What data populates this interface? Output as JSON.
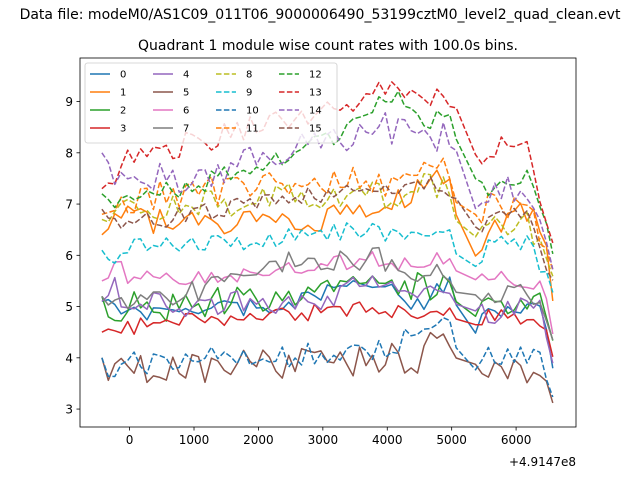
{
  "chart_data": {
    "type": "line",
    "suptitle": "Data file: modeM0/AS1C09_011T06_9000006490_53199cztM0_level2_quad_clean.evt",
    "title": "Quadrant 1 module wise count rates with 100.0s bins.",
    "xlabel": "",
    "ylabel": "",
    "x_offset_label": "+4.9147e8",
    "xlim": [
      -770,
      6930
    ],
    "ylim": [
      2.65,
      9.85
    ],
    "xticks": [
      0,
      1000,
      2000,
      3000,
      4000,
      5000,
      6000
    ],
    "yticks": [
      3,
      4,
      5,
      6,
      7,
      8,
      9
    ],
    "xticklabels": [
      "0",
      "1000",
      "2000",
      "3000",
      "4000",
      "5000",
      "6000"
    ],
    "yticklabels": [
      "3",
      "4",
      "5",
      "6",
      "7",
      "8",
      "9"
    ],
    "x_start": -430,
    "x_step": 100,
    "n_points": 71,
    "gap_range": [
      5100,
      5300
    ],
    "legend_position": "upper-left",
    "series": [
      {
        "name": "0",
        "color": "#1f77b4",
        "dash": "solid",
        "anchors": [
          [
            -430,
            5.1
          ],
          [
            -300,
            5.3
          ],
          [
            -200,
            5.0
          ],
          [
            0,
            4.9
          ],
          [
            1000,
            4.9
          ],
          [
            2000,
            5.0
          ],
          [
            3000,
            5.2
          ],
          [
            3500,
            5.6
          ],
          [
            4000,
            5.4
          ],
          [
            4500,
            5.0
          ],
          [
            5000,
            5.6
          ],
          [
            5200,
            4.2
          ],
          [
            5600,
            5.0
          ],
          [
            6400,
            4.9
          ],
          [
            6600,
            3.6
          ]
        ]
      },
      {
        "name": "1",
        "color": "#ff7f0e",
        "dash": "solid",
        "anchors": [
          [
            -430,
            6.4
          ],
          [
            -200,
            7.0
          ],
          [
            0,
            6.7
          ],
          [
            1000,
            6.6
          ],
          [
            2000,
            6.7
          ],
          [
            3000,
            6.7
          ],
          [
            4000,
            7.0
          ],
          [
            4700,
            7.4
          ],
          [
            5000,
            7.5
          ],
          [
            5200,
            5.8
          ],
          [
            5600,
            6.4
          ],
          [
            6200,
            6.9
          ],
          [
            6500,
            6.3
          ],
          [
            6600,
            4.6
          ]
        ]
      },
      {
        "name": "2",
        "color": "#2ca02c",
        "dash": "solid",
        "anchors": [
          [
            -430,
            5.2
          ],
          [
            -300,
            4.9
          ],
          [
            0,
            5.0
          ],
          [
            1000,
            5.0
          ],
          [
            2000,
            5.2
          ],
          [
            3000,
            5.3
          ],
          [
            3800,
            5.7
          ],
          [
            4200,
            5.3
          ],
          [
            5000,
            5.5
          ],
          [
            5200,
            4.8
          ],
          [
            5600,
            5.0
          ],
          [
            6400,
            5.1
          ],
          [
            6600,
            4.2
          ]
        ]
      },
      {
        "name": "3",
        "color": "#d62728",
        "dash": "solid",
        "anchors": [
          [
            -430,
            4.5
          ],
          [
            -300,
            4.7
          ],
          [
            0,
            4.6
          ],
          [
            1000,
            4.7
          ],
          [
            2000,
            4.8
          ],
          [
            3000,
            4.9
          ],
          [
            3800,
            5.0
          ],
          [
            4200,
            4.9
          ],
          [
            5000,
            5.0
          ],
          [
            5200,
            4.6
          ],
          [
            5600,
            4.8
          ],
          [
            6400,
            4.7
          ],
          [
            6600,
            3.9
          ]
        ]
      },
      {
        "name": "4",
        "color": "#9467bd",
        "dash": "solid",
        "anchors": [
          [
            -430,
            5.1
          ],
          [
            -300,
            5.4
          ],
          [
            0,
            5.1
          ],
          [
            1000,
            5.0
          ],
          [
            2000,
            5.1
          ],
          [
            3000,
            5.1
          ],
          [
            3800,
            5.6
          ],
          [
            4200,
            5.4
          ],
          [
            5000,
            5.3
          ],
          [
            5200,
            5.0
          ],
          [
            5600,
            4.9
          ],
          [
            6400,
            5.0
          ],
          [
            6600,
            3.7
          ]
        ]
      },
      {
        "name": "5",
        "color": "#8c564b",
        "dash": "solid",
        "anchors": [
          [
            -430,
            4.0
          ],
          [
            -300,
            3.6
          ],
          [
            0,
            3.8
          ],
          [
            1000,
            3.8
          ],
          [
            2000,
            3.9
          ],
          [
            3000,
            3.9
          ],
          [
            4000,
            4.0
          ],
          [
            4500,
            3.9
          ],
          [
            4700,
            4.3
          ],
          [
            5000,
            4.3
          ],
          [
            5200,
            4.0
          ],
          [
            5600,
            3.8
          ],
          [
            6400,
            3.8
          ],
          [
            6600,
            3.0
          ]
        ]
      },
      {
        "name": "6",
        "color": "#e377c2",
        "dash": "solid",
        "anchors": [
          [
            -430,
            5.5
          ],
          [
            -200,
            5.8
          ],
          [
            0,
            5.6
          ],
          [
            1000,
            5.5
          ],
          [
            2000,
            5.7
          ],
          [
            3000,
            5.8
          ],
          [
            3800,
            6.0
          ],
          [
            4200,
            5.8
          ],
          [
            5000,
            6.0
          ],
          [
            5200,
            5.5
          ],
          [
            5600,
            5.6
          ],
          [
            6400,
            5.4
          ],
          [
            6600,
            4.3
          ]
        ]
      },
      {
        "name": "7",
        "color": "#7f7f7f",
        "dash": "solid",
        "anchors": [
          [
            -430,
            5.2
          ],
          [
            -200,
            5.0
          ],
          [
            0,
            5.0
          ],
          [
            1000,
            5.3
          ],
          [
            2000,
            5.7
          ],
          [
            2500,
            5.9
          ],
          [
            3000,
            5.8
          ],
          [
            3800,
            6.0
          ],
          [
            4200,
            5.6
          ],
          [
            5000,
            5.6
          ],
          [
            5200,
            5.2
          ],
          [
            5600,
            5.3
          ],
          [
            6400,
            5.2
          ],
          [
            6600,
            4.2
          ]
        ]
      },
      {
        "name": "8",
        "color": "#bcbd22",
        "dash": "dashed",
        "anchors": [
          [
            -430,
            6.7
          ],
          [
            -200,
            6.8
          ],
          [
            0,
            6.9
          ],
          [
            1000,
            7.0
          ],
          [
            2000,
            7.1
          ],
          [
            3000,
            7.2
          ],
          [
            3500,
            7.3
          ],
          [
            4000,
            7.1
          ],
          [
            4600,
            7.4
          ],
          [
            5000,
            7.3
          ],
          [
            5200,
            6.2
          ],
          [
            5600,
            6.6
          ],
          [
            6200,
            6.7
          ],
          [
            6600,
            5.5
          ]
        ]
      },
      {
        "name": "9",
        "color": "#17becf",
        "dash": "dashed",
        "anchors": [
          [
            -430,
            6.1
          ],
          [
            -200,
            5.8
          ],
          [
            0,
            6.2
          ],
          [
            1000,
            6.2
          ],
          [
            2000,
            6.3
          ],
          [
            3000,
            6.4
          ],
          [
            3500,
            6.5
          ],
          [
            4000,
            6.4
          ],
          [
            4600,
            6.5
          ],
          [
            5000,
            6.6
          ],
          [
            5200,
            5.4
          ],
          [
            5600,
            6.3
          ],
          [
            6200,
            6.2
          ],
          [
            6600,
            5.2
          ]
        ]
      },
      {
        "name": "10",
        "color": "#1f77b4",
        "dash": "dashed",
        "anchors": [
          [
            -430,
            4.0
          ],
          [
            -300,
            3.6
          ],
          [
            0,
            3.9
          ],
          [
            1000,
            4.0
          ],
          [
            2000,
            4.0
          ],
          [
            3000,
            4.1
          ],
          [
            4000,
            4.2
          ],
          [
            4500,
            4.5
          ],
          [
            4800,
            4.7
          ],
          [
            5000,
            4.9
          ],
          [
            5200,
            3.5
          ],
          [
            5600,
            4.1
          ],
          [
            6400,
            4.0
          ],
          [
            6600,
            3.1
          ]
        ]
      },
      {
        "name": "11",
        "color": "#ff7f0e",
        "dash": "dashed",
        "anchors": [
          [
            -430,
            6.8
          ],
          [
            -200,
            7.0
          ],
          [
            0,
            7.1
          ],
          [
            1000,
            7.2
          ],
          [
            2000,
            7.4
          ],
          [
            3000,
            7.5
          ],
          [
            3500,
            7.5
          ],
          [
            4000,
            7.4
          ],
          [
            4600,
            7.6
          ],
          [
            5000,
            7.7
          ],
          [
            5200,
            6.6
          ],
          [
            5600,
            7.0
          ],
          [
            6200,
            7.0
          ],
          [
            6600,
            5.6
          ]
        ]
      },
      {
        "name": "12",
        "color": "#2ca02c",
        "dash": "dashed",
        "anchors": [
          [
            -430,
            7.2
          ],
          [
            -200,
            7.0
          ],
          [
            0,
            7.2
          ],
          [
            1000,
            7.3
          ],
          [
            1500,
            7.6
          ],
          [
            2000,
            7.8
          ],
          [
            3000,
            8.2
          ],
          [
            3500,
            8.5
          ],
          [
            4000,
            9.2
          ],
          [
            4600,
            8.6
          ],
          [
            5000,
            8.9
          ],
          [
            5200,
            7.6
          ],
          [
            5600,
            7.3
          ],
          [
            6200,
            7.6
          ],
          [
            6600,
            5.9
          ]
        ]
      },
      {
        "name": "13",
        "color": "#d62728",
        "dash": "dashed",
        "anchors": [
          [
            -430,
            7.3
          ],
          [
            -200,
            7.6
          ],
          [
            0,
            7.9
          ],
          [
            1000,
            8.2
          ],
          [
            2000,
            8.5
          ],
          [
            3000,
            8.8
          ],
          [
            3500,
            9.0
          ],
          [
            4000,
            9.4
          ],
          [
            4600,
            9.0
          ],
          [
            5000,
            9.1
          ],
          [
            5200,
            7.8
          ],
          [
            5600,
            8.1
          ],
          [
            6200,
            8.0
          ],
          [
            6600,
            6.1
          ]
        ]
      },
      {
        "name": "14",
        "color": "#9467bd",
        "dash": "dashed",
        "anchors": [
          [
            -430,
            8.0
          ],
          [
            -200,
            7.6
          ],
          [
            0,
            7.6
          ],
          [
            1000,
            7.5
          ],
          [
            2000,
            7.9
          ],
          [
            3000,
            8.2
          ],
          [
            3500,
            8.3
          ],
          [
            4000,
            8.5
          ],
          [
            4600,
            8.2
          ],
          [
            5000,
            8.4
          ],
          [
            5200,
            6.6
          ],
          [
            5600,
            7.2
          ],
          [
            6200,
            7.3
          ],
          [
            6600,
            5.6
          ]
        ]
      },
      {
        "name": "15",
        "color": "#8c564b",
        "dash": "dashed",
        "anchors": [
          [
            -430,
            6.9
          ],
          [
            -200,
            6.5
          ],
          [
            0,
            6.6
          ],
          [
            1000,
            6.8
          ],
          [
            2000,
            7.0
          ],
          [
            3000,
            7.2
          ],
          [
            3500,
            7.3
          ],
          [
            4000,
            7.2
          ],
          [
            4600,
            7.4
          ],
          [
            5000,
            7.3
          ],
          [
            5200,
            6.3
          ],
          [
            5600,
            6.8
          ],
          [
            6200,
            6.9
          ],
          [
            6600,
            5.4
          ]
        ]
      }
    ]
  }
}
